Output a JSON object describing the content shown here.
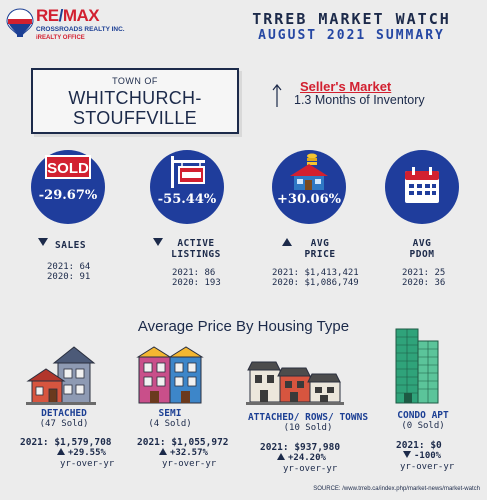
{
  "brand": {
    "name_left": "RE",
    "name_slash": "/",
    "name_right": "MAX",
    "office": "CROSSROADS REALTY INC.",
    "tagline": "iREALTY OFFICE"
  },
  "header": {
    "title": "TRREB MARKET WATCH",
    "subtitle": "AUGUST 2021 SUMMARY"
  },
  "town": {
    "prefix": "TOWN OF",
    "name_line1": "WHITCHURCH-",
    "name_line2": "STOUFFVILLE"
  },
  "market": {
    "type": "Seller's Market",
    "inventory": "1.3 Months of Inventory"
  },
  "stats": [
    {
      "key": "sales",
      "change": "-29.67%",
      "label_line1": "SALES",
      "label_line2": "",
      "y2021": "2021:  64",
      "y2020": "2020:  91",
      "icon": "sold-sign-icon"
    },
    {
      "key": "active",
      "change": "-55.44%",
      "label_line1": "ACTIVE",
      "label_line2": "LISTINGS",
      "y2021": "2021:  86",
      "y2020": "2020: 193",
      "icon": "for-sale-sign-icon"
    },
    {
      "key": "price",
      "change": "+30.06%",
      "label_line1": "AVG",
      "label_line2": "PRICE",
      "y2021": "2021: $1,413,421",
      "y2020": "2020: $1,086,749",
      "icon": "house-coins-icon"
    },
    {
      "key": "pdom",
      "change": "",
      "label_line1": "AVG",
      "label_line2": "PDOM",
      "y2021": "2021: 25",
      "y2020": "2020: 36",
      "icon": "calendar-icon"
    }
  ],
  "housing": {
    "heading": "Average Price By Housing Type",
    "types": [
      {
        "name": "DETACHED",
        "sold": "(47 Sold)",
        "price": "2021: $1,579,708",
        "change": "+29.55%",
        "yoy": "yr-over-yr"
      },
      {
        "name": "SEMI",
        "sold": "(4 Sold)",
        "price": "2021: $1,055,972",
        "change": "+32.57%",
        "yoy": "yr-over-yr"
      },
      {
        "name": "ATTACHED/ ROWS/ TOWNS",
        "sold": "(10 Sold)",
        "price": "2021: $937,980",
        "change": "+24.20%",
        "yoy": "yr-over-yr"
      },
      {
        "name": "CONDO APT",
        "sold": "(0 Sold)",
        "price": "2021: $0",
        "change": "-100%",
        "yoy": "yr-over-yr"
      }
    ]
  },
  "source": "SOURCE:  /www.trreb.ca/index.php/market-news/market-watch",
  "colors": {
    "navy": "#1c2a4a",
    "circle_blue": "#1f3d9c",
    "red": "#d22030"
  }
}
